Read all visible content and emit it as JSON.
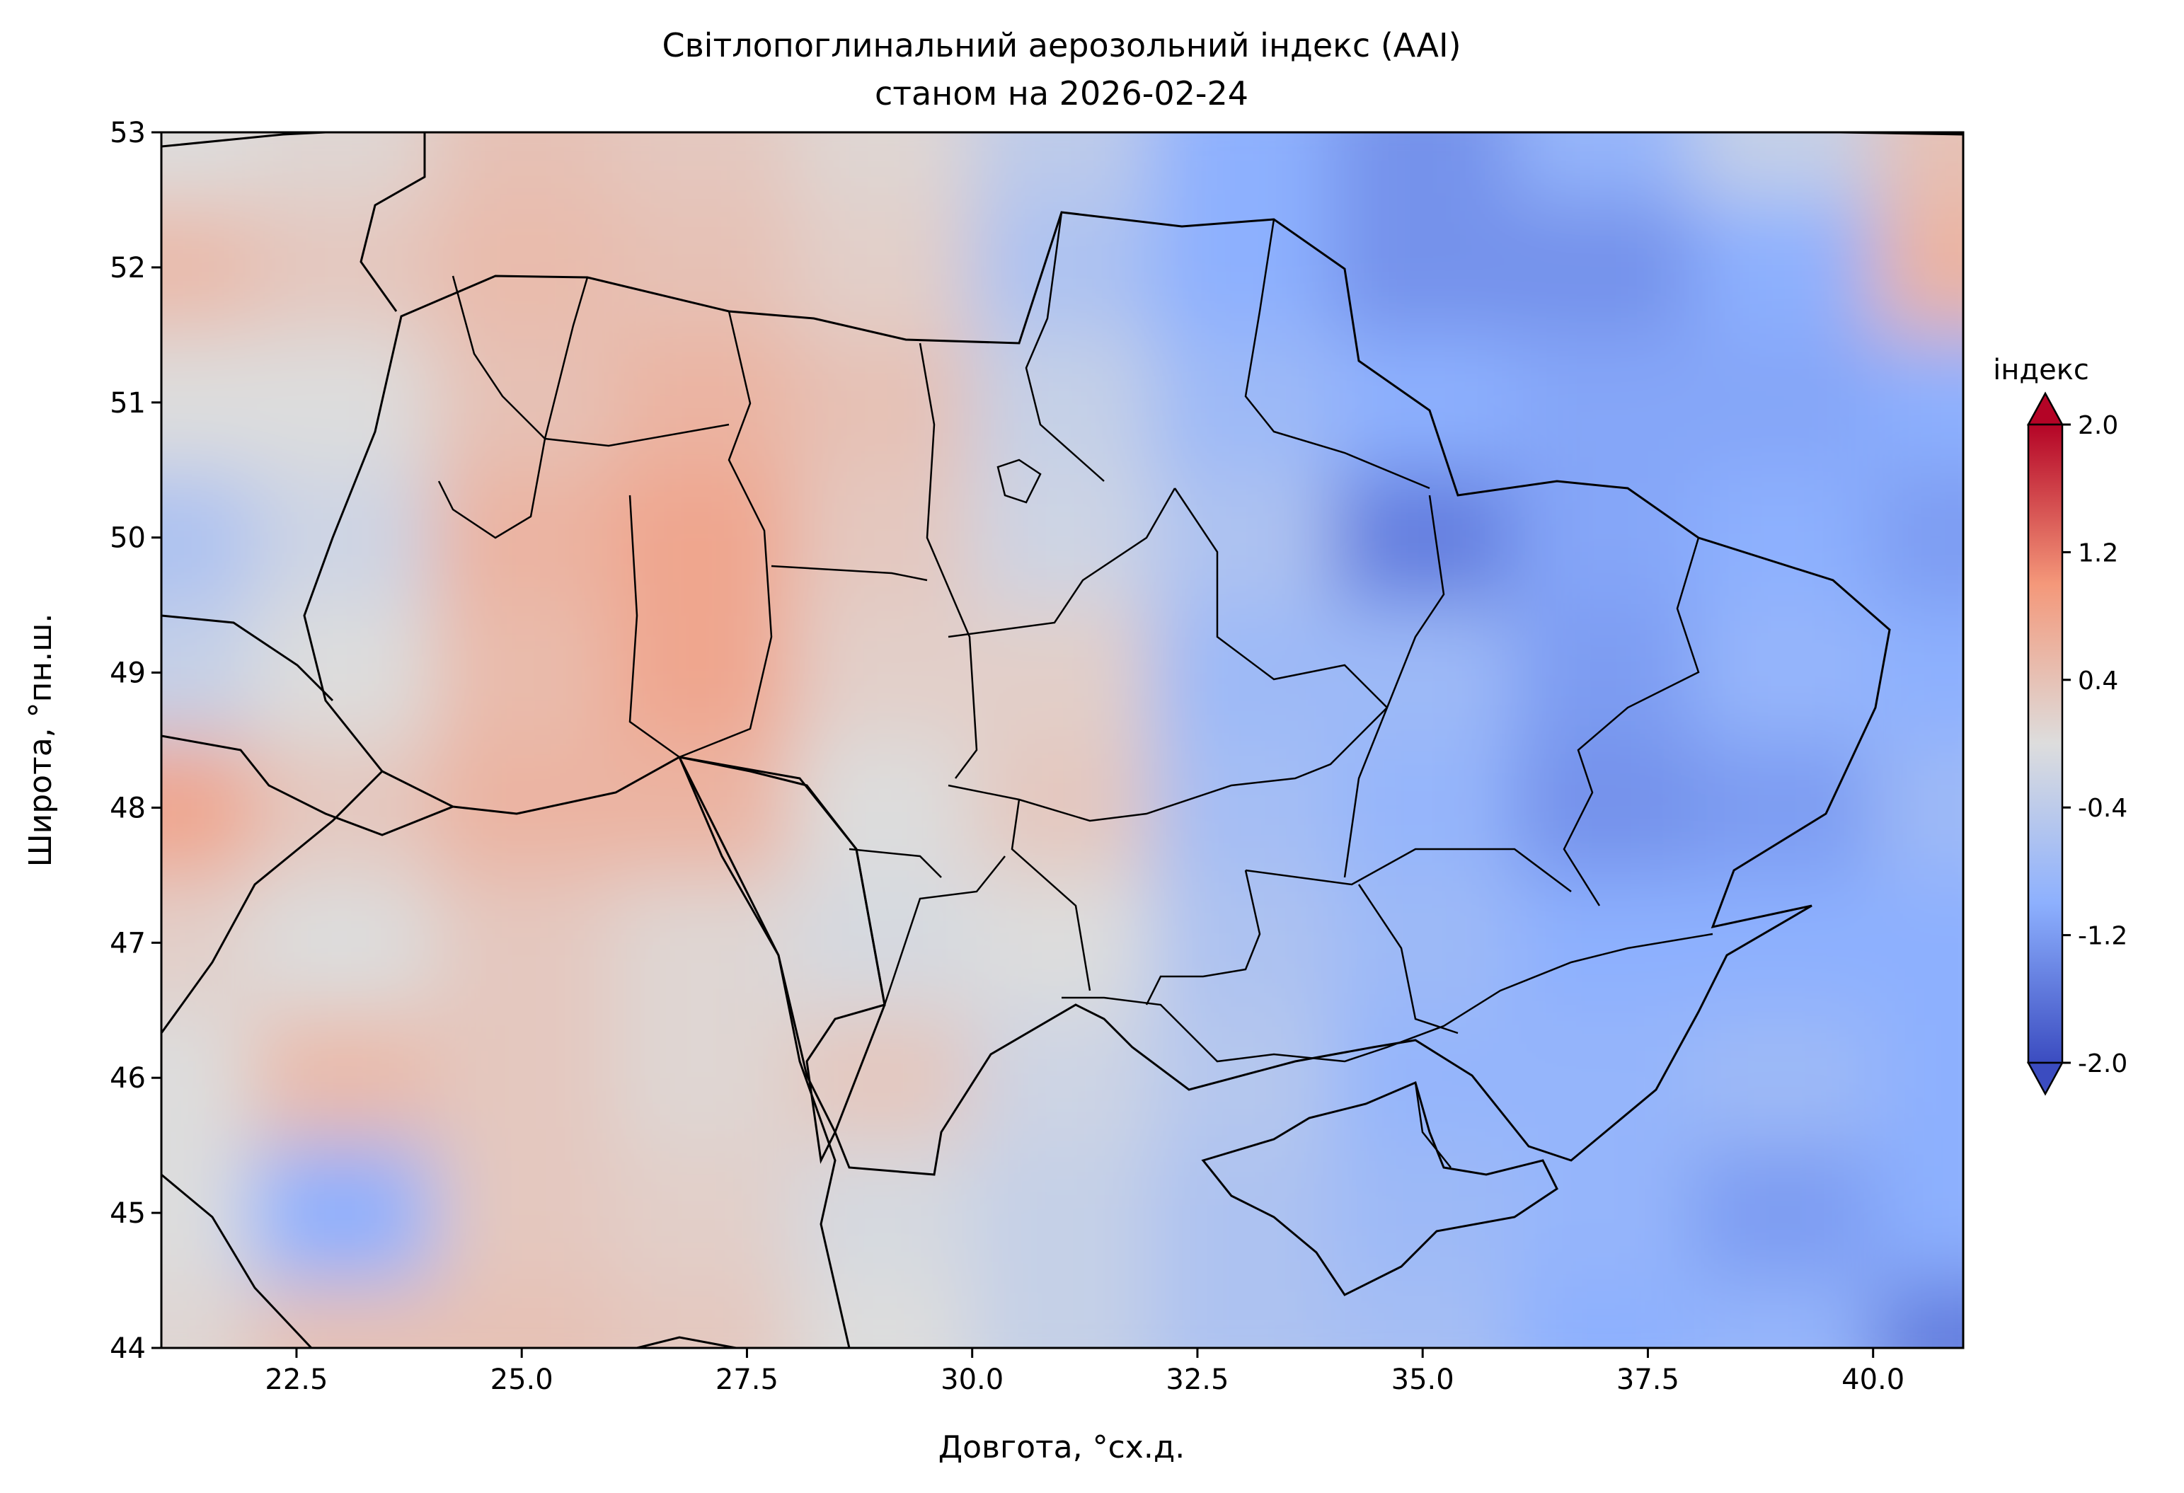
{
  "title_line1": "Світлопоглинальний аерозольний індекс (AAI)",
  "title_line2": "станом на 2026-02-24",
  "chart_data": {
    "type": "heatmap",
    "title": "Світлопоглинальний аерозольний індекс (AAI) станом на 2026-02-24",
    "xlabel": "Довгота, °сх.д.",
    "ylabel": "Широта, °пн.ш.",
    "xlim": [
      21.0,
      41.0
    ],
    "ylim": [
      44.0,
      53.0
    ],
    "x_ticks": [
      22.5,
      25.0,
      27.5,
      30.0,
      32.5,
      35.0,
      37.5,
      40.0
    ],
    "x_tick_labels": [
      "22.5",
      "25.0",
      "27.5",
      "30.0",
      "32.5",
      "35.0",
      "37.5",
      "40.0"
    ],
    "y_ticks": [
      44,
      45,
      46,
      47,
      48,
      49,
      50,
      51,
      52,
      53
    ],
    "y_tick_labels": [
      "44",
      "45",
      "46",
      "47",
      "48",
      "49",
      "50",
      "51",
      "52",
      "53"
    ],
    "colorbar": {
      "label": "індекс",
      "min": -2.0,
      "max": 2.0,
      "extend": "both",
      "cmap": "coolwarm",
      "ticks": [
        -2.0,
        -1.2,
        -0.4,
        0.4,
        1.2,
        2.0
      ],
      "tick_labels": [
        "-2.0",
        "-1.2",
        "-0.4",
        "0.4",
        "1.2",
        "2.0"
      ]
    },
    "field_lons": [
      21,
      23,
      25,
      27,
      29,
      31,
      33,
      35,
      37,
      39,
      41
    ],
    "field_lats": [
      53,
      52,
      51,
      50,
      49,
      48,
      47,
      46,
      45,
      44
    ],
    "field_values": [
      [
        0.0,
        0.1,
        0.4,
        0.3,
        0.1,
        -0.4,
        -1.0,
        -1.3,
        -0.9,
        -0.3,
        0.4
      ],
      [
        0.5,
        0.3,
        0.5,
        0.4,
        0.2,
        -0.6,
        -1.0,
        -1.3,
        -1.3,
        -1.0,
        0.6
      ],
      [
        0.0,
        0.0,
        0.4,
        0.6,
        0.4,
        -0.3,
        -0.8,
        -1.0,
        -1.1,
        -1.1,
        -1.0
      ],
      [
        -0.6,
        -0.2,
        0.6,
        0.8,
        0.3,
        -0.2,
        -0.6,
        -1.5,
        -1.1,
        -1.0,
        -1.2
      ],
      [
        -0.3,
        0.0,
        0.5,
        0.8,
        0.2,
        0.2,
        -0.8,
        -0.8,
        -1.2,
        -0.9,
        -1.0
      ],
      [
        0.8,
        0.3,
        0.6,
        0.6,
        0.0,
        0.3,
        -0.7,
        -0.9,
        -1.3,
        -1.2,
        -0.8
      ],
      [
        0.2,
        0.0,
        0.3,
        0.1,
        -0.1,
        0.0,
        -0.6,
        -0.8,
        -1.0,
        -1.0,
        -1.0
      ],
      [
        0.0,
        0.5,
        0.3,
        0.1,
        0.3,
        -0.2,
        -0.5,
        -0.9,
        -0.9,
        -0.8,
        -1.0
      ],
      [
        0.0,
        -1.0,
        0.3,
        0.2,
        -0.1,
        -0.3,
        -0.6,
        -0.8,
        -0.9,
        -1.2,
        -1.0
      ],
      [
        0.1,
        0.4,
        0.4,
        0.3,
        0.0,
        -0.3,
        -0.6,
        -0.7,
        -1.0,
        -0.9,
        -1.5
      ]
    ]
  }
}
